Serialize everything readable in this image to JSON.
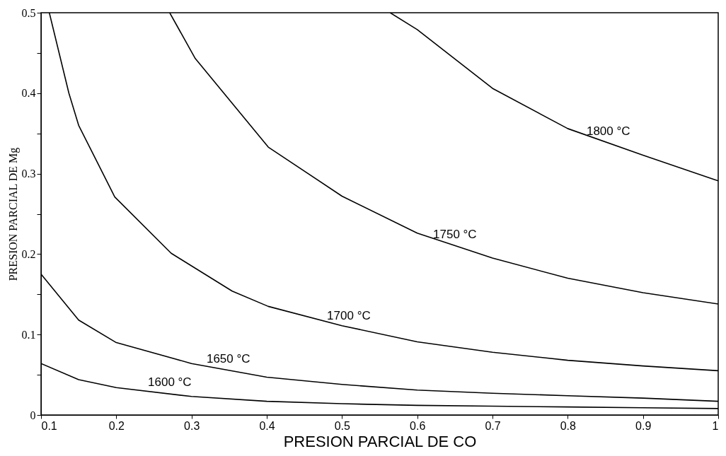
{
  "chart_data": {
    "type": "line",
    "xlabel": "PRESION PARCIAL DE CO",
    "ylabel": "PRESION PARCIAL DE Mg",
    "xlim": [
      0.1,
      1
    ],
    "xticks": [
      0.1,
      0.2,
      0.3,
      0.4,
      0.5,
      0.6,
      0.7,
      0.8,
      0.9,
      1
    ],
    "ylim": [
      0,
      0.5
    ],
    "yticks": [
      0,
      {
        "value": 0.05,
        "label": null
      },
      0.1,
      {
        "value": 0.15,
        "label": null
      },
      0.2,
      {
        "value": 0.25,
        "label": null
      },
      0.3,
      {
        "value": 0.35,
        "label": null
      },
      0.4,
      {
        "value": 0.45,
        "label": null
      },
      0.5
    ],
    "grid": false,
    "marker": "none",
    "line_style": "solid",
    "series": [
      {
        "color": "#000000",
        "x": [
          0.564,
          0.6,
          0.7,
          0.8,
          0.9,
          1
        ],
        "values": [
          0.5,
          0.479,
          0.406,
          0.356,
          0.323,
          0.291
        ]
      },
      {
        "color": "#000000",
        "x": [
          0.271,
          0.305,
          0.402,
          0.5,
          0.6,
          0.7,
          0.8,
          0.9,
          1
        ],
        "values": [
          0.5,
          0.443,
          0.333,
          0.272,
          0.226,
          0.195,
          0.17,
          0.152,
          0.138
        ]
      },
      {
        "color": "#000000",
        "x": [
          0.111,
          0.137,
          0.15,
          0.198,
          0.273,
          0.354,
          0.402,
          0.5,
          0.6,
          0.7,
          0.8,
          0.9,
          1
        ],
        "values": [
          0.5,
          0.4,
          0.36,
          0.271,
          0.201,
          0.154,
          0.135,
          0.111,
          0.091,
          0.078,
          0.068,
          0.061,
          0.055
        ]
      },
      {
        "color": "#000000",
        "x": [
          0.1,
          0.15,
          0.2,
          0.3,
          0.4,
          0.5,
          0.6,
          0.7,
          0.8,
          0.9,
          1
        ],
        "values": [
          0.175,
          0.118,
          0.09,
          0.064,
          0.047,
          0.038,
          0.031,
          0.027,
          0.024,
          0.021,
          0.017
        ]
      },
      {
        "color": "#000000",
        "x": [
          0.1,
          0.15,
          0.2,
          0.3,
          0.4,
          0.5,
          0.6,
          0.7,
          0.8,
          0.9,
          1
        ],
        "values": [
          0.064,
          0.044,
          0.034,
          0.023,
          0.017,
          0.014,
          0.012,
          0.011,
          0.01,
          0.009,
          0.008
        ]
      }
    ],
    "annotations": [
      {
        "text": "1800 °C",
        "x": 0.854,
        "y": 0.338
      },
      {
        "text": "1750 °C",
        "x": 0.65,
        "y": 0.21
      },
      {
        "text": "1700 °C",
        "x": 0.509,
        "y": 0.109
      },
      {
        "text": "1650 °C",
        "x": 0.349,
        "y": 0.055
      },
      {
        "text": "1600 °C",
        "x": 0.271,
        "y": 0.026
      }
    ]
  }
}
